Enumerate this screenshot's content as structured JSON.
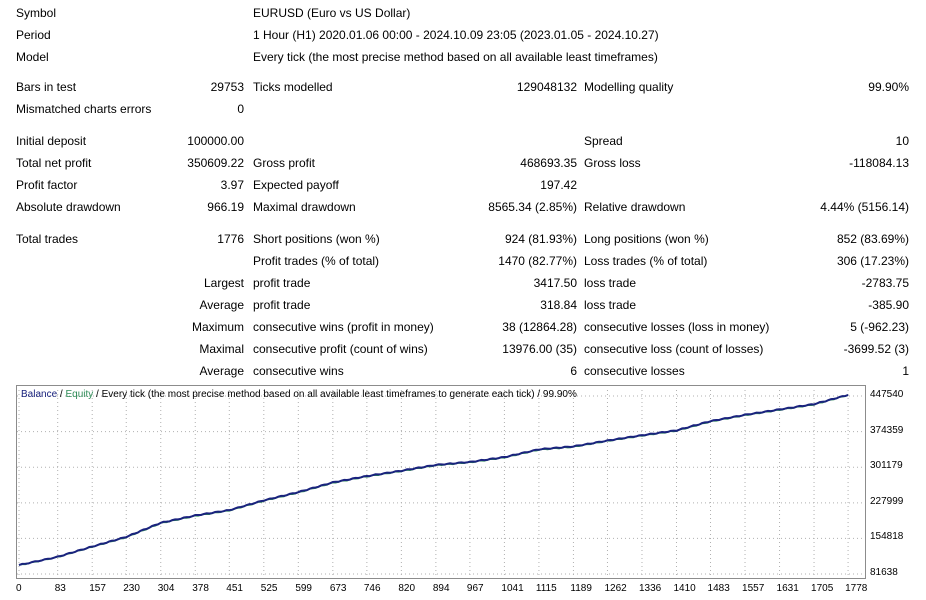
{
  "header": [
    {
      "label": "Symbol",
      "value": "EURUSD (Euro vs US Dollar)"
    },
    {
      "label": "Period",
      "value": "1 Hour (H1) 2020.01.06 00:00 - 2024.10.09 23:05 (2023.01.05 - 2024.10.27)"
    },
    {
      "label": "Model",
      "value": "Every tick (the most precise method based on all available least timeframes)"
    }
  ],
  "stats": {
    "bars_in_test": {
      "label": "Bars in test",
      "value": "29753"
    },
    "ticks_modelled": {
      "label": "Ticks modelled",
      "value": "129048132"
    },
    "modelling_quality": {
      "label": "Modelling quality",
      "value": "99.90%"
    },
    "mismatched": {
      "label": "Mismatched charts errors",
      "value": "0"
    },
    "initial_deposit": {
      "label": "Initial deposit",
      "value": "100000.00"
    },
    "spread": {
      "label": "Spread",
      "value": "10"
    },
    "total_net_profit": {
      "label": "Total net profit",
      "value": "350609.22"
    },
    "gross_profit": {
      "label": "Gross profit",
      "value": "468693.35"
    },
    "gross_loss": {
      "label": "Gross loss",
      "value": "-118084.13"
    },
    "profit_factor": {
      "label": "Profit factor",
      "value": "3.97"
    },
    "expected_payoff": {
      "label": "Expected payoff",
      "value": "197.42"
    },
    "absolute_drawdown": {
      "label": "Absolute drawdown",
      "value": "966.19"
    },
    "maximal_drawdown": {
      "label": "Maximal drawdown",
      "value": "8565.34 (2.85%)"
    },
    "relative_drawdown": {
      "label": "Relative drawdown",
      "value": "4.44% (5156.14)"
    },
    "total_trades": {
      "label": "Total trades",
      "value": "1776"
    },
    "short_positions": {
      "label": "Short positions (won %)",
      "value": "924 (81.93%)"
    },
    "long_positions": {
      "label": "Long positions (won %)",
      "value": "852 (83.69%)"
    },
    "profit_trades": {
      "label": "Profit trades (% of total)",
      "value": "1470 (82.77%)"
    },
    "loss_trades": {
      "label": "Loss trades (% of total)",
      "value": "306 (17.23%)"
    }
  },
  "trade_rows": [
    {
      "prefix": "Largest",
      "a_label": "profit trade",
      "a_value": "3417.50",
      "b_label": "loss trade",
      "b_value": "-2783.75"
    },
    {
      "prefix": "Average",
      "a_label": "profit trade",
      "a_value": "318.84",
      "b_label": "loss trade",
      "b_value": "-385.90"
    },
    {
      "prefix": "Maximum",
      "a_label": "consecutive wins (profit in money)",
      "a_value": "38 (12864.28)",
      "b_label": "consecutive losses (loss in money)",
      "b_value": "5 (-962.23)"
    },
    {
      "prefix": "Maximal",
      "a_label": "consecutive profit (count of wins)",
      "a_value": "13976.00 (35)",
      "b_label": "consecutive loss (count of losses)",
      "b_value": "-3699.52 (3)"
    },
    {
      "prefix": "Average",
      "a_label": "consecutive wins",
      "a_value": "6",
      "b_label": "consecutive losses",
      "b_value": "1"
    }
  ],
  "chart_legend": {
    "balance": "Balance",
    "sep1": " / ",
    "equity": "Equity",
    "rest": " / Every tick (the most precise method based on all available least timeframes to generate each tick) / 99.90%"
  },
  "colors": {
    "balance": "#1a237e",
    "equity": "#2e8b57",
    "grid": "#b0b0b0"
  },
  "chart_data": {
    "type": "line",
    "x": [
      0,
      83,
      157,
      230,
      304,
      378,
      451,
      525,
      599,
      673,
      746,
      820,
      894,
      967,
      1041,
      1115,
      1189,
      1262,
      1336,
      1410,
      1483,
      1557,
      1631,
      1705,
      1778
    ],
    "series": [
      {
        "name": "Balance",
        "values": [
          100000,
          117000,
          138000,
          158000,
          187000,
          202000,
          213000,
          233000,
          250000,
          270000,
          283000,
          294000,
          306000,
          312000,
          322000,
          338000,
          344000,
          356000,
          367000,
          377000,
          396000,
          409000,
          420000,
          431000,
          450000
        ]
      },
      {
        "name": "Equity",
        "values": [
          99500,
          116500,
          137500,
          157000,
          186000,
          201000,
          212000,
          232000,
          249000,
          269000,
          282000,
          293000,
          305000,
          311000,
          321000,
          337000,
          343000,
          355000,
          366000,
          376000,
          395000,
          408000,
          419000,
          430000,
          449500
        ]
      }
    ],
    "yticks": [
      "447540",
      "374359",
      "301179",
      "227999",
      "154818",
      "81638"
    ],
    "ytick_values": [
      447540,
      374359,
      301179,
      227999,
      154818,
      81638
    ],
    "xticks": [
      "0",
      "83",
      "157",
      "230",
      "304",
      "378",
      "451",
      "525",
      "599",
      "673",
      "746",
      "820",
      "894",
      "967",
      "1041",
      "1115",
      "1189",
      "1262",
      "1336",
      "1410",
      "1483",
      "1557",
      "1631",
      "1705",
      "1778"
    ],
    "xlim": [
      0,
      1810
    ],
    "ylim": [
      81638,
      460000
    ],
    "grid": true
  }
}
